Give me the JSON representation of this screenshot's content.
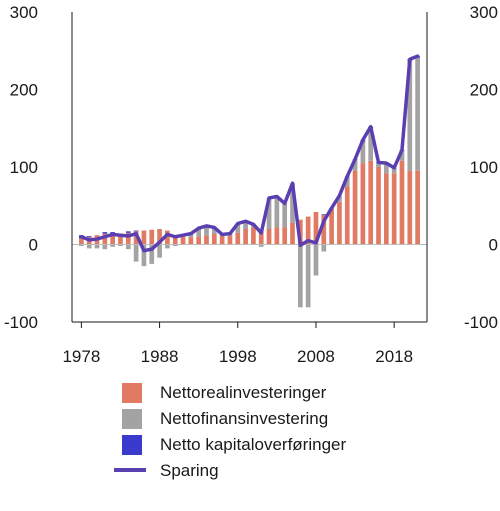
{
  "chart_data": {
    "type": "bar",
    "stacked": true,
    "x": [
      1978,
      1979,
      1980,
      1981,
      1982,
      1983,
      1984,
      1985,
      1986,
      1987,
      1988,
      1989,
      1990,
      1991,
      1992,
      1993,
      1994,
      1995,
      1996,
      1997,
      1998,
      1999,
      2000,
      2001,
      2002,
      2003,
      2004,
      2005,
      2006,
      2007,
      2008,
      2009,
      2010,
      2011,
      2012,
      2013,
      2014,
      2015,
      2016,
      2017,
      2018,
      2019,
      2020,
      2021
    ],
    "series": [
      {
        "name": "Nettorealinvesteringer",
        "color": "#e07a62",
        "values": [
          8,
          10,
          12,
          14,
          14,
          14,
          15,
          17,
          18,
          19,
          20,
          18,
          12,
          10,
          9,
          10,
          12,
          14,
          12,
          11,
          15,
          20,
          22,
          18,
          20,
          22,
          22,
          28,
          32,
          36,
          42,
          38,
          46,
          55,
          75,
          95,
          105,
          108,
          100,
          92,
          92,
          108,
          95,
          95
        ]
      },
      {
        "name": "Nettofinansinvestering",
        "color": "#a3a3a3",
        "values": [
          -2,
          -5,
          -5,
          -6,
          -3,
          -2,
          -6,
          -22,
          -28,
          -25,
          -17,
          -5,
          -2,
          2,
          5,
          11,
          12,
          8,
          1,
          2,
          12,
          10,
          4,
          -3,
          40,
          40,
          31,
          51,
          -81,
          -81,
          -40,
          -9,
          1,
          8,
          12,
          14,
          28,
          42,
          5,
          12,
          6,
          13,
          142,
          146
        ]
      },
      {
        "name": "Netto kapitaloverføringer",
        "color": "#3a3bcc",
        "values": [
          4,
          1,
          0,
          2,
          2,
          0,
          2,
          1,
          0,
          0,
          0,
          0,
          0,
          0,
          0,
          0,
          0,
          0,
          0,
          1,
          0,
          0,
          0,
          0,
          0,
          0,
          0,
          0,
          0,
          0,
          0,
          1,
          0,
          0,
          1,
          1,
          2,
          2,
          1,
          1,
          1,
          1,
          2,
          2
        ]
      }
    ],
    "line": {
      "name": "Sparing",
      "color": "#5a3fb0",
      "values": [
        10,
        6,
        7,
        10,
        13,
        12,
        11,
        14,
        -8,
        -6,
        3,
        13,
        10,
        12,
        14,
        21,
        24,
        22,
        13,
        14,
        27,
        30,
        26,
        15,
        60,
        62,
        53,
        79,
        -1,
        5,
        2,
        30,
        47,
        63,
        88,
        110,
        135,
        152,
        106,
        105,
        99,
        122,
        239,
        243
      ]
    },
    "ylim": [
      -100,
      300
    ],
    "yticks": [
      -100,
      0,
      100,
      200,
      300
    ],
    "xticks": [
      1978,
      1988,
      1998,
      2008,
      2018
    ],
    "xlim": [
      1976.8,
      2022.2
    ],
    "dual_y_axis": true,
    "legend_position": "bottom"
  }
}
